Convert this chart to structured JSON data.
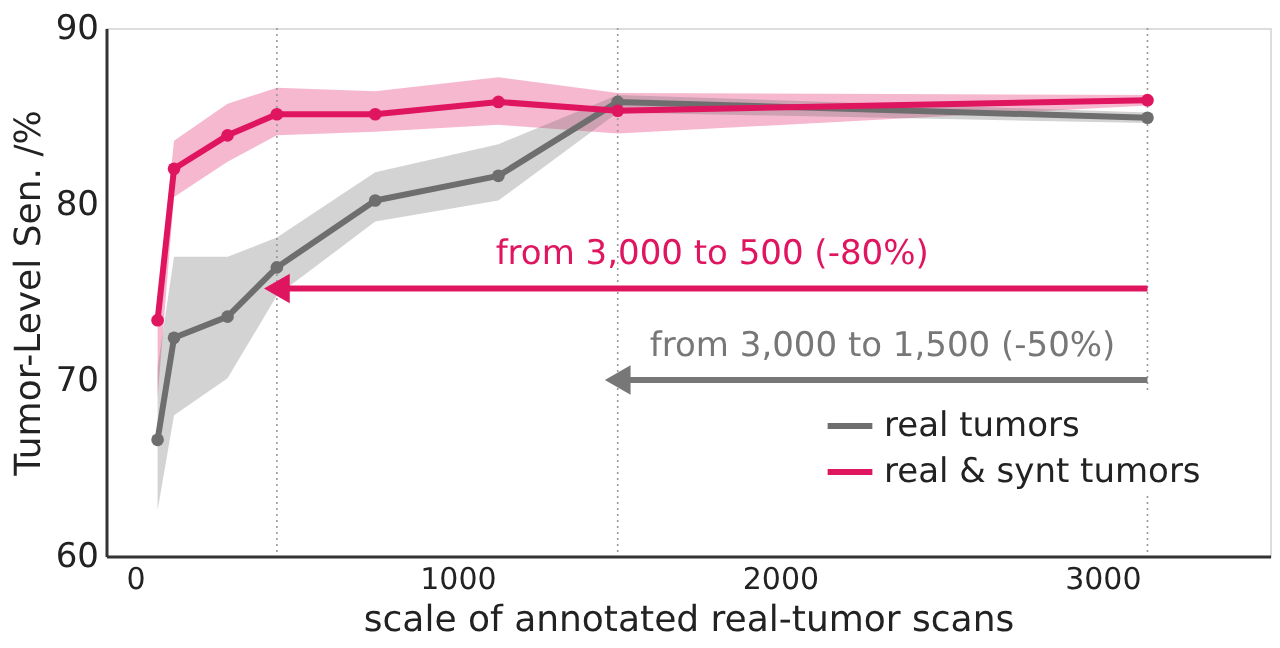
{
  "chart_data": {
    "type": "line",
    "xlabel": "scale of annotated real-tumor scans",
    "ylabel": "Tumor-Level Sen. /%",
    "xlim": [
      -90,
      3520
    ],
    "xticks": [
      0,
      1000,
      2000,
      3000
    ],
    "ylim": [
      60,
      90
    ],
    "yticks": [
      60,
      70,
      80,
      90
    ],
    "grid": false,
    "legend": "bottom right",
    "marker": "circle",
    "line_style": "solid",
    "series": [
      {
        "name": "real tumors",
        "color": "#6e6e6e",
        "x": [
          70,
          121,
          287,
          440,
          745,
          1127,
          1497,
          3140
        ],
        "values": [
          66.6,
          72.4,
          73.6,
          76.4,
          80.2,
          81.6,
          85.8,
          84.9
        ],
        "lower": [
          62.6,
          68.0,
          70.1,
          74.8,
          79.0,
          80.2,
          85.2,
          84.6
        ],
        "upper": [
          70.7,
          77.0,
          77.0,
          78.1,
          81.8,
          83.4,
          86.2,
          85.2
        ]
      },
      {
        "name": "real & synt tumors",
        "color": "#e0155f",
        "x": [
          70,
          121,
          287,
          440,
          745,
          1127,
          1497,
          3140
        ],
        "values": [
          73.4,
          82.0,
          83.9,
          85.1,
          85.1,
          85.8,
          85.3,
          85.9
        ],
        "lower": [
          69.0,
          80.4,
          82.4,
          83.9,
          84.1,
          84.5,
          84.0,
          85.6
        ],
        "upper": [
          74.5,
          83.6,
          85.7,
          86.6,
          86.4,
          87.2,
          86.3,
          86.2
        ]
      },
      {
        "type": "line",
        "color": "#e0155f",
        "x": [
          3140,
          440
        ],
        "values": [
          75.2,
          75.2
        ],
        "marker": "triangle"
      },
      {
        "type": "line",
        "color": "#777777",
        "x": [
          3140,
          1497
        ],
        "values": [
          70.0,
          70.0
        ],
        "marker": "triangle"
      }
    ],
    "ref_lines": [
      {
        "axis": "x",
        "value": 440,
        "line_style": "dotted",
        "color": "#999999"
      },
      {
        "axis": "x",
        "value": 1497,
        "line_style": "dotted",
        "color": "#999999"
      },
      {
        "axis": "x",
        "value": 3140,
        "line_style": "dotted",
        "color": "#999999"
      }
    ],
    "annotations": [
      "from 3,000 to 500 (-80%)",
      "from 3,000 to 1,500 (-50%)"
    ]
  }
}
